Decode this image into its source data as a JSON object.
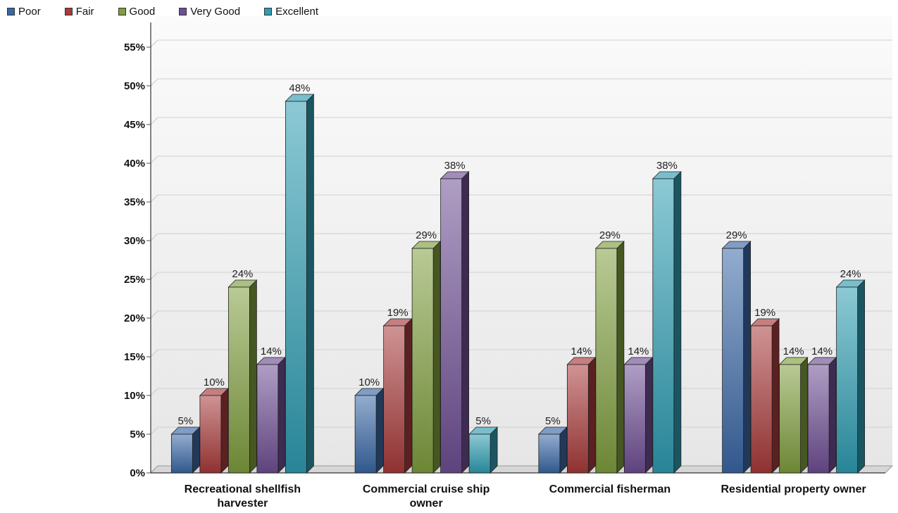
{
  "chart_data": {
    "type": "bar",
    "categories": [
      [
        "Recreational shellfish",
        "harvester"
      ],
      [
        "Commercial cruise ship",
        "owner"
      ],
      [
        "Commercial fisherman"
      ],
      [
        "Residential property owner"
      ]
    ],
    "series": [
      {
        "name": "Poor",
        "color": "#3a68a6",
        "values": [
          5,
          10,
          5,
          29
        ],
        "labels": [
          "5%",
          "10%",
          "5%",
          "29%"
        ]
      },
      {
        "name": "Fair",
        "color": "#a83a3a",
        "values": [
          10,
          19,
          14,
          19
        ],
        "labels": [
          "10%",
          "19%",
          "14%",
          "19%"
        ]
      },
      {
        "name": "Good",
        "color": "#7f9e3e",
        "values": [
          24,
          29,
          29,
          14
        ],
        "labels": [
          "24%",
          "29%",
          "29%",
          "14%"
        ]
      },
      {
        "name": "Very Good",
        "color": "#6e4f93",
        "values": [
          14,
          38,
          14,
          14
        ],
        "labels": [
          "14%",
          "38%",
          "14%",
          "14%"
        ]
      },
      {
        "name": "Excellent",
        "color": "#2e9cb2",
        "values": [
          48,
          5,
          38,
          24
        ],
        "labels": [
          "48%",
          "5%",
          "38%",
          "24%"
        ]
      }
    ],
    "yticks": [
      "0%",
      "5%",
      "10%",
      "15%",
      "20%",
      "25%",
      "30%",
      "35%",
      "40%",
      "45%",
      "50%",
      "55%"
    ],
    "ylim": [
      0,
      55
    ],
    "grid": true,
    "legend": "top-left",
    "three_d": true
  }
}
